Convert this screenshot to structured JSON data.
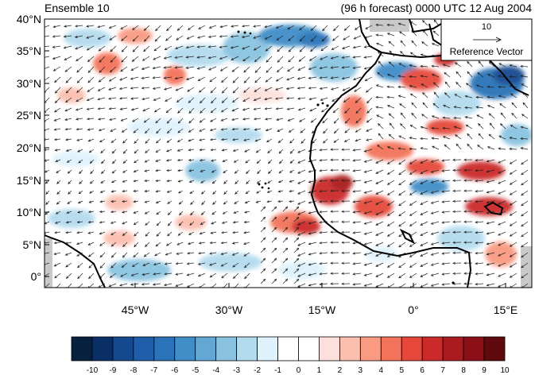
{
  "title_left": "Ensemble 10",
  "title_right": "(96 h forecast) 0000 UTC 12 Aug 2004",
  "reference_vector": {
    "magnitude_label": "10",
    "label": "Reference Vector"
  },
  "lat_labels": [
    "40°N",
    "35°N",
    "30°N",
    "25°N",
    "20°N",
    "15°N",
    "10°N",
    "5°N",
    "0°"
  ],
  "lon_labels": [
    "45°W",
    "30°W",
    "15°W",
    "0°",
    "15°E"
  ],
  "colorbar": {
    "labels": [
      "-10",
      "-9",
      "-8",
      "-7",
      "-6",
      "-5",
      "-4",
      "-3",
      "-2",
      "-1",
      "0",
      "1",
      "2",
      "3",
      "4",
      "5",
      "6",
      "7",
      "8",
      "9",
      "10"
    ],
    "colors": [
      "#08213f",
      "#0a2f66",
      "#14488f",
      "#1f5ea8",
      "#2a73b8",
      "#3f8ec8",
      "#63a8d5",
      "#8ac3e0",
      "#b3dbee",
      "#dff2fb",
      "#ffffff",
      "#ffffff",
      "#fde0dc",
      "#fbbfb0",
      "#f99a82",
      "#f3735a",
      "#e5483a",
      "#cc2a2a",
      "#ab1a1f",
      "#8a0f17",
      "#5f0a0d"
    ]
  },
  "colors": {
    "land_coast": "#000000",
    "missing": "#c9c9c9"
  }
}
